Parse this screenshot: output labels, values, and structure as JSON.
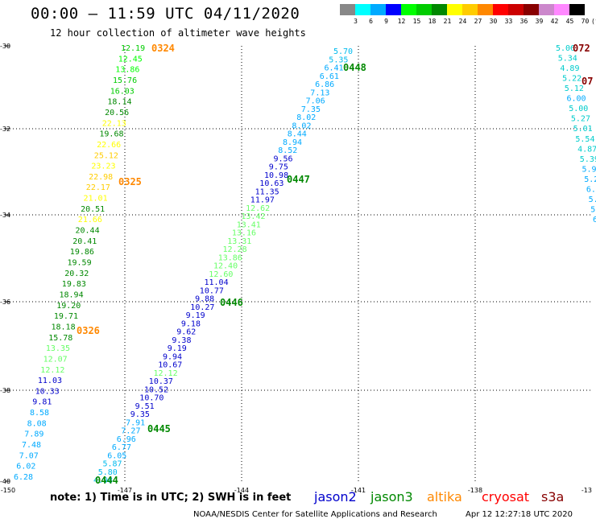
{
  "title": "00:00 – 11:59 UTC 04/11/2020",
  "subtitle": "12 hour collection of altimeter wave heights",
  "legend": {
    "unit": "(ft)",
    "bins": [
      {
        "label": "3",
        "color": "#888888"
      },
      {
        "label": "6",
        "color": "#00ffff"
      },
      {
        "label": "9",
        "color": "#00aaff"
      },
      {
        "label": "12",
        "color": "#0000ff"
      },
      {
        "label": "15",
        "color": "#00ff00"
      },
      {
        "label": "18",
        "color": "#00cc00"
      },
      {
        "label": "21",
        "color": "#008800"
      },
      {
        "label": "24",
        "color": "#ffff00"
      },
      {
        "label": "27",
        "color": "#ffcc00"
      },
      {
        "label": "30",
        "color": "#ff8800"
      },
      {
        "label": "33",
        "color": "#ff0000"
      },
      {
        "label": "36",
        "color": "#cc0000"
      },
      {
        "label": "39",
        "color": "#880000"
      },
      {
        "label": "42",
        "color": "#cc88cc"
      },
      {
        "label": "45",
        "color": "#ff88ff"
      },
      {
        "label": "70",
        "color": "#000000"
      }
    ]
  },
  "axes": {
    "lon_labels": [
      "-150",
      "-147",
      "-144",
      "-141",
      "-138",
      "-13"
    ],
    "lat_labels": [
      "-30",
      "-32",
      "-34",
      "-36",
      "-38",
      "-40"
    ]
  },
  "tracks": [
    {
      "id": "west",
      "points": [
        {
          "v": "12.19",
          "c": "#00cc00"
        },
        {
          "v": "12.45",
          "c": "#00ff00"
        },
        {
          "v": "13.86",
          "c": "#00ff00"
        },
        {
          "v": "15.76",
          "c": "#00cc00"
        },
        {
          "v": "16.03",
          "c": "#00cc00"
        },
        {
          "v": "18.14",
          "c": "#008800"
        },
        {
          "v": "20.56",
          "c": "#008800"
        },
        {
          "v": "22.13",
          "c": "#ffff00"
        },
        {
          "v": "19.68",
          "c": "#008800"
        },
        {
          "v": "22.66",
          "c": "#ffff00"
        },
        {
          "v": "25.12",
          "c": "#ffcc00"
        },
        {
          "v": "23.23",
          "c": "#ffff00"
        },
        {
          "v": "22.98",
          "c": "#ffcc00"
        },
        {
          "v": "22.17",
          "c": "#ffcc00"
        },
        {
          "v": "21.01",
          "c": "#ffff00"
        },
        {
          "v": "20.51",
          "c": "#008800"
        },
        {
          "v": "21.66",
          "c": "#ffff00"
        },
        {
          "v": "20.44",
          "c": "#008800"
        },
        {
          "v": "20.41",
          "c": "#008800"
        },
        {
          "v": "19.86",
          "c": "#008800"
        },
        {
          "v": "19.59",
          "c": "#008800"
        },
        {
          "v": "20.32",
          "c": "#008800"
        },
        {
          "v": "19.83",
          "c": "#008800"
        },
        {
          "v": "18.94",
          "c": "#008800"
        },
        {
          "v": "19.20",
          "c": "#008800"
        },
        {
          "v": "19.71",
          "c": "#008800"
        },
        {
          "v": "18.18",
          "c": "#008800"
        },
        {
          "v": "15.78",
          "c": "#008800"
        },
        {
          "v": "13.35",
          "c": "#66ff66"
        },
        {
          "v": "12.07",
          "c": "#66ff66"
        },
        {
          "v": "12.12",
          "c": "#66ff66"
        },
        {
          "v": "11.03",
          "c": "#0000cc"
        },
        {
          "v": "10.33",
          "c": "#0000cc"
        },
        {
          "v": "9.81",
          "c": "#0000cc"
        },
        {
          "v": "8.58",
          "c": "#00aaff"
        },
        {
          "v": "8.08",
          "c": "#00aaff"
        },
        {
          "v": "7.89",
          "c": "#00aaff"
        },
        {
          "v": "7.48",
          "c": "#00aaff"
        },
        {
          "v": "7.07",
          "c": "#00aaff"
        },
        {
          "v": "6.02",
          "c": "#00aaff"
        },
        {
          "v": "6.28",
          "c": "#00aaff"
        }
      ]
    },
    {
      "id": "middle",
      "points": [
        {
          "v": "5.70",
          "c": "#00bbee"
        },
        {
          "v": "5.35",
          "c": "#00bbee"
        },
        {
          "v": "6.41",
          "c": "#00aaff"
        },
        {
          "v": "6.61",
          "c": "#00aaff"
        },
        {
          "v": "6.86",
          "c": "#00aaff"
        },
        {
          "v": "7.13",
          "c": "#00aaff"
        },
        {
          "v": "7.06",
          "c": "#00aaff"
        },
        {
          "v": "7.35",
          "c": "#00aaff"
        },
        {
          "v": "8.02",
          "c": "#00aaff"
        },
        {
          "v": "8.02",
          "c": "#00aaff"
        },
        {
          "v": "8.44",
          "c": "#00aaff"
        },
        {
          "v": "8.94",
          "c": "#00aaff"
        },
        {
          "v": "8.52",
          "c": "#00aaff"
        },
        {
          "v": "9.56",
          "c": "#0000cc"
        },
        {
          "v": "9.75",
          "c": "#0000cc"
        },
        {
          "v": "10.98",
          "c": "#0000cc"
        },
        {
          "v": "10.63",
          "c": "#0000cc"
        },
        {
          "v": "11.35",
          "c": "#0000cc"
        },
        {
          "v": "11.97",
          "c": "#0000cc"
        },
        {
          "v": "12.62",
          "c": "#66ff66"
        },
        {
          "v": "13.42",
          "c": "#66ff66"
        },
        {
          "v": "13.41",
          "c": "#66ff66"
        },
        {
          "v": "13.16",
          "c": "#66ff66"
        },
        {
          "v": "13.31",
          "c": "#66ff66"
        },
        {
          "v": "12.28",
          "c": "#66ff66"
        },
        {
          "v": "13.86",
          "c": "#66ff66"
        },
        {
          "v": "12.40",
          "c": "#66ff66"
        },
        {
          "v": "12.60",
          "c": "#66ff66"
        },
        {
          "v": "11.04",
          "c": "#0000cc"
        },
        {
          "v": "10.77",
          "c": "#0000cc"
        },
        {
          "v": "9.88",
          "c": "#0000cc"
        },
        {
          "v": "10.27",
          "c": "#0000cc"
        },
        {
          "v": "9.19",
          "c": "#0000cc"
        },
        {
          "v": "9.18",
          "c": "#0000cc"
        },
        {
          "v": "9.62",
          "c": "#0000cc"
        },
        {
          "v": "9.38",
          "c": "#0000cc"
        },
        {
          "v": "9.19",
          "c": "#0000cc"
        },
        {
          "v": "9.94",
          "c": "#0000cc"
        },
        {
          "v": "10.67",
          "c": "#0000cc"
        },
        {
          "v": "12.12",
          "c": "#66ff66"
        },
        {
          "v": "10.37",
          "c": "#0000cc"
        },
        {
          "v": "10.52",
          "c": "#0000cc"
        },
        {
          "v": "10.70",
          "c": "#0000cc"
        },
        {
          "v": "9.51",
          "c": "#0000cc"
        },
        {
          "v": "9.35",
          "c": "#0000cc"
        },
        {
          "v": "7.91",
          "c": "#00aaff"
        },
        {
          "v": "7.27",
          "c": "#00aaff"
        },
        {
          "v": "6.96",
          "c": "#00aaff"
        },
        {
          "v": "6.77",
          "c": "#00aaff"
        },
        {
          "v": "6.05",
          "c": "#00aaff"
        },
        {
          "v": "5.87",
          "c": "#00bbee"
        },
        {
          "v": "5.80",
          "c": "#00bbee"
        },
        {
          "v": "4.98",
          "c": "#00bbee"
        }
      ]
    },
    {
      "id": "east",
      "points": [
        {
          "v": "5.06",
          "c": "#00cccc"
        },
        {
          "v": "5.34",
          "c": "#00cccc"
        },
        {
          "v": "4.89",
          "c": "#00cccc"
        },
        {
          "v": "5.22",
          "c": "#00cccc"
        },
        {
          "v": "5.12",
          "c": "#00cccc"
        },
        {
          "v": "6.00",
          "c": "#00aaff"
        },
        {
          "v": "5.00",
          "c": "#00cccc"
        },
        {
          "v": "5.27",
          "c": "#00cccc"
        },
        {
          "v": "5.01",
          "c": "#00cccc"
        },
        {
          "v": "5.54",
          "c": "#00cccc"
        },
        {
          "v": "4.87",
          "c": "#00cccc"
        },
        {
          "v": "5.39",
          "c": "#00cccc"
        },
        {
          "v": "5.93",
          "c": "#00aaff"
        },
        {
          "v": "5.28",
          "c": "#00aaff"
        },
        {
          "v": "6.0",
          "c": "#00aaff"
        },
        {
          "v": "5.9",
          "c": "#00aaff"
        },
        {
          "v": "5.",
          "c": "#00aaff"
        },
        {
          "v": "6",
          "c": "#00aaff"
        }
      ]
    }
  ],
  "time_tags": [
    {
      "text": "0324",
      "c": "#ff8800"
    },
    {
      "text": "0325",
      "c": "#ff8800"
    },
    {
      "text": "0326",
      "c": "#ff8800"
    },
    {
      "text": "0448",
      "c": "#008800"
    },
    {
      "text": "0447",
      "c": "#008800"
    },
    {
      "text": "0446",
      "c": "#008800"
    },
    {
      "text": "0445",
      "c": "#008800"
    },
    {
      "text": "0444",
      "c": "#008800"
    },
    {
      "text": "072",
      "c": "#880000"
    },
    {
      "text": "07",
      "c": "#880000"
    }
  ],
  "note": "note: 1) Time is in UTC; 2) SWH is in feet",
  "satellites": [
    {
      "name": "jason2",
      "color": "#0000cc"
    },
    {
      "name": "jason3",
      "color": "#008800"
    },
    {
      "name": "altika",
      "color": "#ff8800"
    },
    {
      "name": "cryosat",
      "color": "#ff0000"
    },
    {
      "name": "s3a",
      "color": "#880000"
    }
  ],
  "credit": "NOAA/NESDIS Center for Satellite Applications and Research",
  "timestamp": "Apr 12 12:27:18 UTC 2020"
}
